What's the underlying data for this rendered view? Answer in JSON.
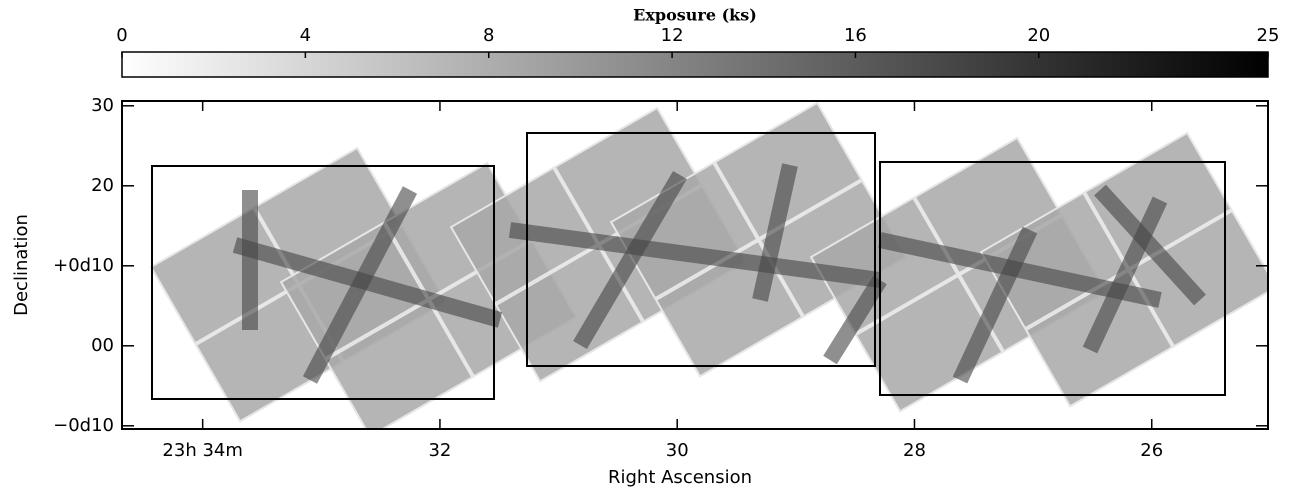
{
  "chart_data": {
    "type": "image",
    "colorbar": {
      "label": "Exposure (ks)",
      "lim": [
        0,
        25
      ],
      "ticks": [
        0,
        4,
        8,
        12,
        16,
        20,
        25
      ],
      "colors": [
        "#ffffff",
        "#000000"
      ]
    },
    "xlabel": "Right Ascension",
    "ylabel": "Declination",
    "xlim": [
      34.68,
      25.02
    ],
    "xticks": [
      {
        "value": 34,
        "label": "23h 34m"
      },
      32,
      30,
      28,
      26
    ],
    "ylim": [
      -10.4,
      30.6
    ],
    "yticks": [
      30,
      20,
      {
        "value": 10,
        "label": "+0d10"
      },
      {
        "value": 0,
        "label": "00"
      },
      {
        "value": -10,
        "label": "−0d10"
      }
    ]
  }
}
